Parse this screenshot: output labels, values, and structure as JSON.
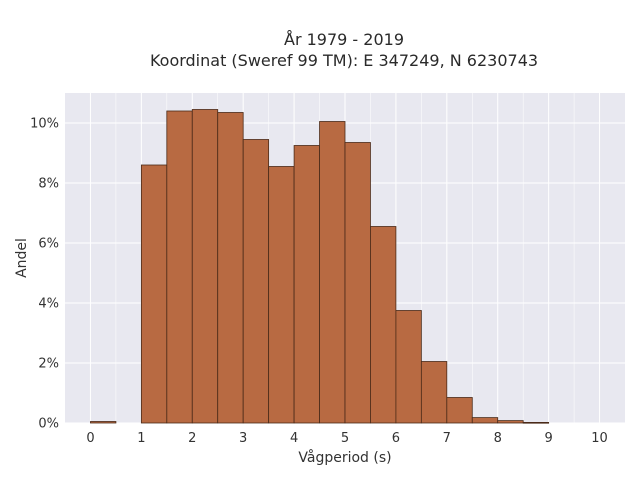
{
  "chart_data": {
    "type": "bar",
    "title_lines": [
      "År 1979 - 2019",
      "Koordinat (Sweref 99 TM): E 347249, N 6230743"
    ],
    "xlabel": "Vågperiod (s)",
    "ylabel": "Andel",
    "xlim": [
      -0.5,
      10.5
    ],
    "ylim": [
      0,
      0.11
    ],
    "x_ticks": [
      0,
      1,
      2,
      3,
      4,
      5,
      6,
      7,
      8,
      9,
      10
    ],
    "x_tick_labels": [
      "0",
      "1",
      "2",
      "3",
      "4",
      "5",
      "6",
      "7",
      "8",
      "9",
      "10"
    ],
    "y_ticks": [
      0,
      0.02,
      0.04,
      0.06,
      0.08,
      0.1
    ],
    "y_tick_labels": [
      "0%",
      "2%",
      "4%",
      "6%",
      "8%",
      "10%"
    ],
    "bin_width": 0.5,
    "bins": [
      {
        "x0": 0.0,
        "value": 0.0005
      },
      {
        "x0": 0.5,
        "value": 0.0
      },
      {
        "x0": 1.0,
        "value": 0.086
      },
      {
        "x0": 1.5,
        "value": 0.104
      },
      {
        "x0": 2.0,
        "value": 0.1045
      },
      {
        "x0": 2.5,
        "value": 0.1035
      },
      {
        "x0": 3.0,
        "value": 0.0945
      },
      {
        "x0": 3.5,
        "value": 0.0855
      },
      {
        "x0": 4.0,
        "value": 0.0925
      },
      {
        "x0": 4.5,
        "value": 0.1005
      },
      {
        "x0": 5.0,
        "value": 0.0935
      },
      {
        "x0": 5.5,
        "value": 0.0655
      },
      {
        "x0": 6.0,
        "value": 0.0375
      },
      {
        "x0": 6.5,
        "value": 0.0205
      },
      {
        "x0": 7.0,
        "value": 0.0085
      },
      {
        "x0": 7.5,
        "value": 0.0018
      },
      {
        "x0": 8.0,
        "value": 0.0008
      },
      {
        "x0": 8.5,
        "value": 0.0002
      }
    ],
    "grid": true,
    "colors": {
      "bar_fill": "#b86a42",
      "bar_edge": "#4a2a18",
      "plot_background": "#e8e8f0",
      "grid": "#ffffff"
    }
  }
}
